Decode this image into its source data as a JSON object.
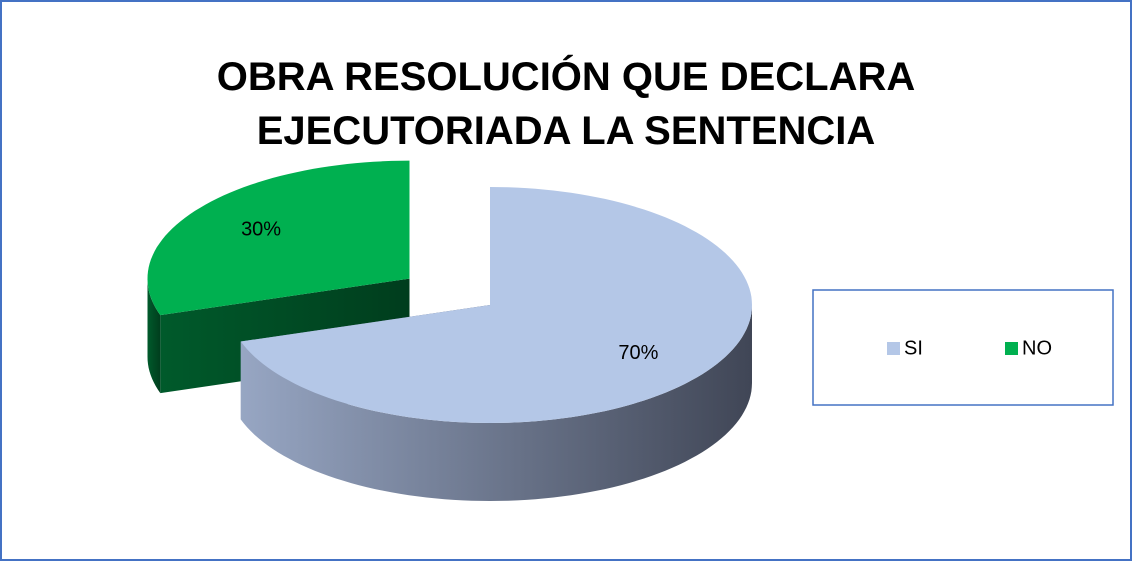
{
  "chart_data": {
    "type": "pie",
    "title": "OBRA RESOLUCIÓN QUE DECLARA EJECUTORIADA LA SENTENCIA",
    "categories": [
      "SI",
      "NO"
    ],
    "values": [
      70,
      30
    ],
    "value_labels": [
      "70%",
      "30%"
    ],
    "colors": [
      "#b4c7e7",
      "#00b050"
    ],
    "legend": "right"
  }
}
